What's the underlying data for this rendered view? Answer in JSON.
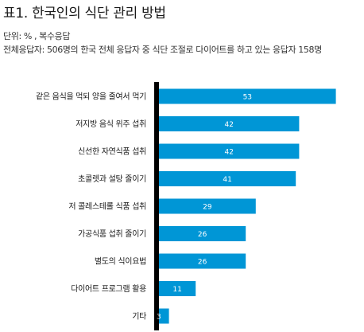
{
  "header": {
    "title": "표1. 한국인의 식단 관리 방법",
    "unit": "단위: % , 복수응답",
    "base": "전체응답자: 506명의 한국 전체 응답자 중 식단 조절로 다이어트를 하고 있는 응답자 158명"
  },
  "colors": {
    "bar": "#0096d6",
    "axis": "#000000"
  },
  "chart_data": {
    "type": "bar",
    "orientation": "horizontal",
    "categories": [
      "같은 음식을 먹되 양을 줄여서 먹기",
      "저지방 음식 위주 섭취",
      "신선한 자연식품 섭취",
      "초콜렛과 설탕 줄이기",
      "저 콜레스테롤 식품 섭취",
      "가공식품 섭취 줄이기",
      "별도의 식이요법",
      "다이어트 프로그램 활용",
      "기타"
    ],
    "values": [
      53,
      42,
      42,
      41,
      29,
      26,
      26,
      11,
      3
    ],
    "value_labels": [
      "53",
      "42",
      "42",
      "41",
      "29",
      "26",
      "26",
      "11",
      "3"
    ],
    "xlim": [
      0,
      60
    ],
    "grid": false,
    "legend": "none"
  }
}
